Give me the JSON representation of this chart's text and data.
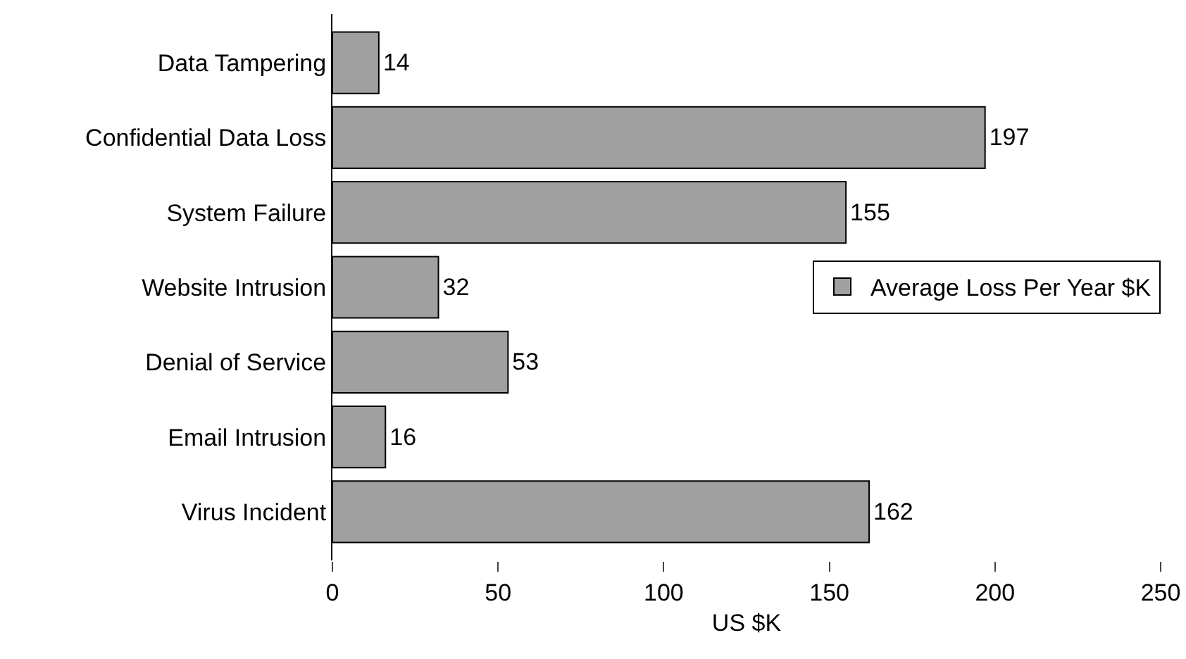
{
  "chart_data": {
    "type": "bar",
    "orientation": "horizontal",
    "xlabel": "US $K",
    "categories": [
      "Data Tampering",
      "Confidential Data Loss",
      "System Failure",
      "Website Intrusion",
      "Denial of Service",
      "Email Intrusion",
      "Virus Incident"
    ],
    "series": [
      {
        "name": "Average Loss Per Year $K",
        "color": "#a0a0a0",
        "values": [
          14,
          197,
          155,
          32,
          53,
          16,
          162
        ]
      }
    ],
    "xlim": [
      0,
      250
    ],
    "xticks": [
      0,
      50,
      100,
      150,
      200,
      250
    ],
    "grid": false,
    "legend": "right",
    "data_labels": true
  }
}
